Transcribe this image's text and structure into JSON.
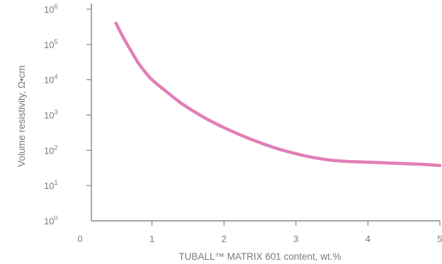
{
  "chart_data": {
    "type": "line",
    "title": "",
    "xlabel": "TUBALL™ MATRIX 601 content, wt.%",
    "ylabel": "Volume resistivity, Ω•cm",
    "x_ticks": [
      "0",
      "1",
      "2",
      "3",
      "4",
      "5"
    ],
    "y_ticks": [
      {
        "base": "10",
        "exp": "0",
        "value": 1
      },
      {
        "base": "10",
        "exp": "1",
        "value": 10
      },
      {
        "base": "10",
        "exp": "2",
        "value": 100
      },
      {
        "base": "10",
        "exp": "3",
        "value": 1000
      },
      {
        "base": "10",
        "exp": "4",
        "value": 10000
      },
      {
        "base": "10",
        "exp": "5",
        "value": 100000
      },
      {
        "base": "10",
        "exp": "6",
        "value": 1000000
      }
    ],
    "xlim": [
      0,
      5
    ],
    "ylim": [
      1,
      1000000
    ],
    "y_scale": "log",
    "grid": false,
    "series": [
      {
        "color": "#e07fb6",
        "x": [
          0.5,
          0.6,
          0.7,
          0.8,
          0.9,
          1.0,
          1.2,
          1.4,
          1.6,
          1.8,
          2.0,
          2.25,
          2.5,
          2.75,
          3.0,
          3.25,
          3.5,
          3.75,
          4.0,
          4.25,
          4.5,
          4.75,
          5.0
        ],
        "y": [
          400000,
          160000,
          70000,
          32000,
          17000,
          10000,
          4600,
          2200,
          1200,
          700,
          440,
          260,
          165,
          110,
          80,
          62,
          52,
          48,
          46,
          44,
          42,
          40,
          37
        ]
      }
    ]
  }
}
